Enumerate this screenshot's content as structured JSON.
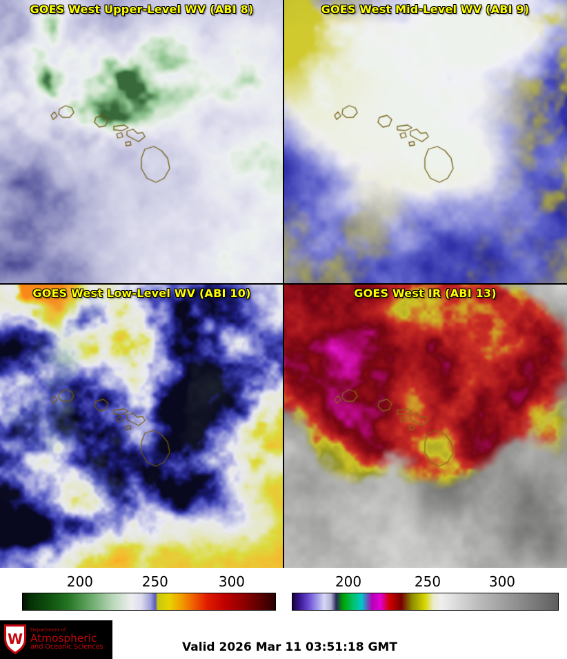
{
  "colors": {
    "title_yellow": "#ffff00",
    "uw_red": "#c5050c",
    "background": "#ffffff",
    "tick_text": "#000000"
  },
  "panels": [
    {
      "id": "abi8",
      "title": "GOES West Upper-Level WV (ABI 8)"
    },
    {
      "id": "abi9",
      "title": "GOES West Mid-Level WV (ABI 9)"
    },
    {
      "id": "abi10",
      "title": "GOES West Low-Level WV (ABI 10)"
    },
    {
      "id": "abi13",
      "title": "GOES West IR (ABI 13)"
    }
  ],
  "colorbars": [
    {
      "id": "wv",
      "ticks": [
        {
          "label": "200",
          "pos": 22.8
        },
        {
          "label": "250",
          "pos": 52.4
        },
        {
          "label": "300",
          "pos": 82.6
        }
      ],
      "stops": [
        [
          0.0,
          "#021202"
        ],
        [
          0.03,
          "#063006"
        ],
        [
          0.1,
          "#0e4e0e"
        ],
        [
          0.18,
          "#247524"
        ],
        [
          0.27,
          "#6aa96a"
        ],
        [
          0.36,
          "#bcd9bc"
        ],
        [
          0.43,
          "#edeff0"
        ],
        [
          0.47,
          "#dcdcee"
        ],
        [
          0.505,
          "#a0a0d8"
        ],
        [
          0.525,
          "#5a5ac2"
        ],
        [
          0.535,
          "#c8c810"
        ],
        [
          0.58,
          "#e6d400"
        ],
        [
          0.63,
          "#f29b00"
        ],
        [
          0.68,
          "#ef5a00"
        ],
        [
          0.73,
          "#e01c00"
        ],
        [
          0.8,
          "#c00000"
        ],
        [
          0.88,
          "#8c0000"
        ],
        [
          0.95,
          "#520000"
        ],
        [
          1.0,
          "#2a0000"
        ]
      ]
    },
    {
      "id": "ir",
      "ticks": [
        {
          "label": "200",
          "pos": 21.2
        },
        {
          "label": "250",
          "pos": 50.9
        },
        {
          "label": "300",
          "pos": 78.8
        }
      ],
      "stops": [
        [
          0.0,
          "#1a0040"
        ],
        [
          0.03,
          "#3c1a96"
        ],
        [
          0.06,
          "#6a4ad2"
        ],
        [
          0.09,
          "#9a92e8"
        ],
        [
          0.12,
          "#d8d8f4"
        ],
        [
          0.145,
          "#b0b0d4"
        ],
        [
          0.165,
          "#28285a"
        ],
        [
          0.19,
          "#00a000"
        ],
        [
          0.225,
          "#00c060"
        ],
        [
          0.26,
          "#00c8c8"
        ],
        [
          0.3,
          "#b400b4"
        ],
        [
          0.33,
          "#e000d8"
        ],
        [
          0.365,
          "#d00000"
        ],
        [
          0.41,
          "#760000"
        ],
        [
          0.45,
          "#8c8c00"
        ],
        [
          0.5,
          "#d8d800"
        ],
        [
          0.53,
          "#eaeacc"
        ],
        [
          0.56,
          "#efefef"
        ],
        [
          0.7,
          "#bcbcbc"
        ],
        [
          0.85,
          "#8e8e8e"
        ],
        [
          1.0,
          "#5e5e5e"
        ]
      ]
    }
  ],
  "footer": {
    "valid_text": "Valid 2026 Mar 11 03:51:18 GMT",
    "logo": {
      "letter": "W",
      "line1": "Department of",
      "line2": "Atmospheric",
      "line3": "and Oceanic Sciences"
    }
  }
}
